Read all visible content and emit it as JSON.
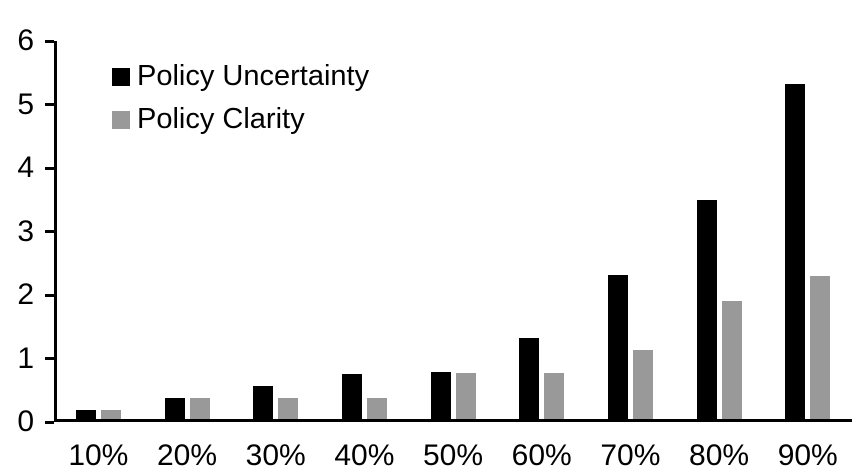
{
  "chart_data": {
    "type": "bar",
    "title": "",
    "xlabel": "",
    "ylabel": "",
    "categories": [
      "10%",
      "20%",
      "30%",
      "40%",
      "50%",
      "60%",
      "70%",
      "80%",
      "90%"
    ],
    "series": [
      {
        "name": "Policy Uncertainty",
        "color": "#000000",
        "values": [
          0.19,
          0.38,
          0.56,
          0.76,
          0.78,
          1.33,
          2.31,
          3.5,
          5.33
        ]
      },
      {
        "name": "Policy Clarity",
        "color": "#999999",
        "values": [
          0.19,
          0.38,
          0.38,
          0.38,
          0.77,
          0.77,
          1.13,
          1.9,
          2.3
        ]
      }
    ],
    "ylim": [
      0,
      6
    ],
    "yticks": [
      0,
      1,
      2,
      3,
      4,
      5,
      6
    ],
    "grid": false,
    "legend_position": "top-left-inside",
    "axis_color": "#000000",
    "background_color": "#ffffff"
  }
}
